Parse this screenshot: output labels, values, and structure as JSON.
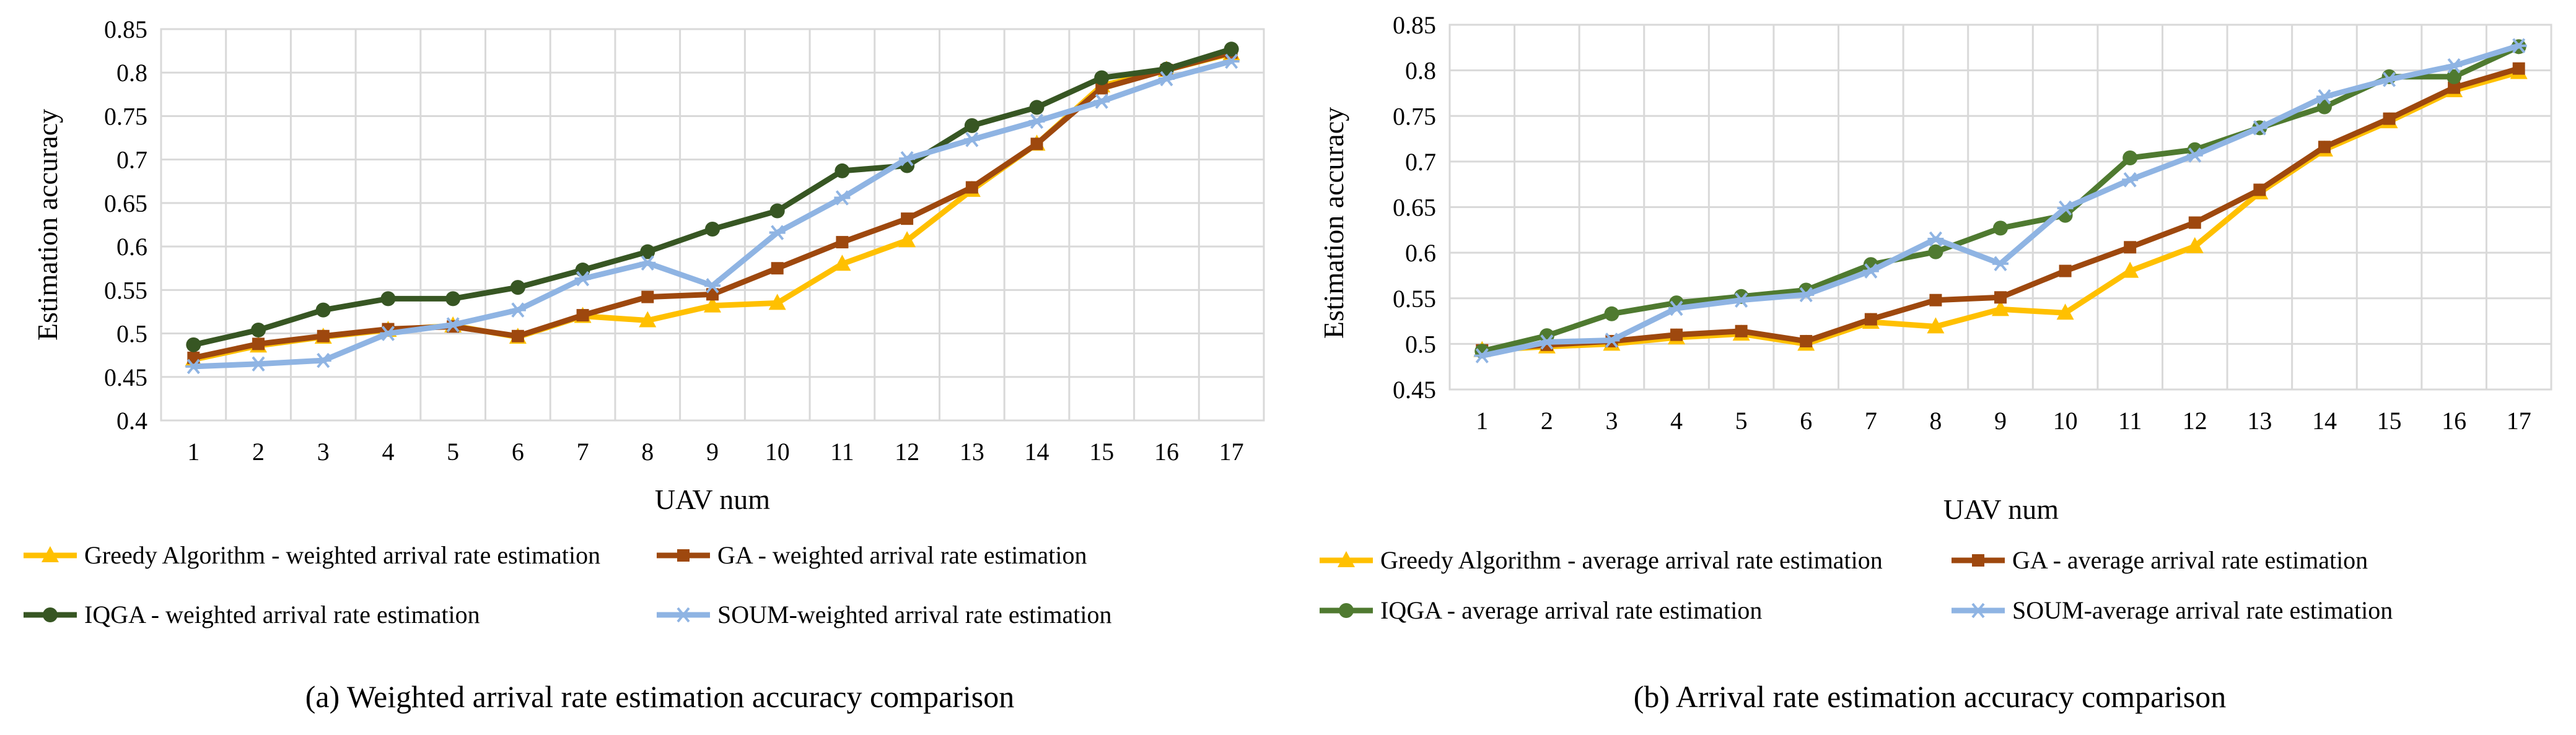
{
  "chart_data": [
    {
      "type": "line",
      "caption": "(a) Weighted arrival rate estimation accuracy comparison",
      "xlabel": "UAV num",
      "ylabel": "Estimation accuracy",
      "ylim": [
        0.4,
        0.85
      ],
      "y_ticks": [
        "0.4",
        "0.45",
        "0.5",
        "0.55",
        "0.6",
        "0.65",
        "0.7",
        "0.75",
        "0.8",
        "0.85"
      ],
      "categories": [
        "1",
        "2",
        "3",
        "4",
        "5",
        "6",
        "7",
        "8",
        "9",
        "10",
        "11",
        "12",
        "13",
        "14",
        "15",
        "16",
        "17"
      ],
      "grid": true,
      "legend_position": "bottom",
      "series": [
        {
          "name": "Greedy Algorithm -  weighted arrival rate estimation",
          "color": "#ffc000",
          "marker": "triangle",
          "values": [
            0.47,
            0.486,
            0.496,
            0.504,
            0.509,
            0.496,
            0.52,
            0.515,
            0.532,
            0.535,
            0.58,
            0.607,
            0.665,
            0.718,
            0.785,
            0.803,
            0.822
          ]
        },
        {
          "name": "GA -  weighted arrival rate estimation",
          "color": "#9e480e",
          "marker": "square",
          "values": [
            0.472,
            0.488,
            0.497,
            0.505,
            0.508,
            0.497,
            0.521,
            0.542,
            0.545,
            0.575,
            0.605,
            0.632,
            0.668,
            0.718,
            0.782,
            0.803,
            0.823
          ]
        },
        {
          "name": "IQGA -  weighted arrival rate estimation",
          "color": "#375623",
          "marker": "circle",
          "values": [
            0.487,
            0.504,
            0.527,
            0.54,
            0.54,
            0.553,
            0.573,
            0.594,
            0.62,
            0.641,
            0.687,
            0.693,
            0.739,
            0.76,
            0.794,
            0.804,
            0.827
          ]
        },
        {
          "name": "SOUM-weighted arrival rate estimation",
          "color": "#8fb4e3",
          "marker": "star",
          "values": [
            0.462,
            0.465,
            0.469,
            0.5,
            0.51,
            0.527,
            0.563,
            0.581,
            0.555,
            0.616,
            0.656,
            0.701,
            0.723,
            0.744,
            0.767,
            0.793,
            0.813
          ]
        }
      ]
    },
    {
      "type": "line",
      "caption": "(b) Arrival rate estimation accuracy comparison",
      "xlabel": "UAV num",
      "ylabel": "Estimation accuracy",
      "ylim": [
        0.45,
        0.85
      ],
      "y_ticks": [
        "0.45",
        "0.5",
        "0.55",
        "0.6",
        "0.65",
        "0.7",
        "0.75",
        "0.8",
        "0.85"
      ],
      "categories": [
        "1",
        "2",
        "3",
        "4",
        "5",
        "6",
        "7",
        "8",
        "9",
        "10",
        "11",
        "12",
        "13",
        "14",
        "15",
        "16",
        "17"
      ],
      "grid": true,
      "legend_position": "bottom",
      "series": [
        {
          "name": "Greedy Algorithm -  average arrival rate estimation",
          "color": "#ffc000",
          "marker": "triangle",
          "values": [
            0.493,
            0.497,
            0.5,
            0.507,
            0.511,
            0.5,
            0.524,
            0.519,
            0.538,
            0.534,
            0.58,
            0.607,
            0.666,
            0.713,
            0.744,
            0.778,
            0.798
          ]
        },
        {
          "name": "GA -  average arrival rate estimation",
          "color": "#9e480e",
          "marker": "square",
          "values": [
            0.493,
            0.499,
            0.503,
            0.51,
            0.514,
            0.503,
            0.527,
            0.548,
            0.551,
            0.58,
            0.606,
            0.633,
            0.669,
            0.716,
            0.747,
            0.781,
            0.802
          ]
        },
        {
          "name": "IQGA -  average arrival rate estimation",
          "color": "#4f7a30",
          "marker": "circle",
          "values": [
            0.492,
            0.509,
            0.533,
            0.545,
            0.552,
            0.559,
            0.587,
            0.601,
            0.627,
            0.641,
            0.704,
            0.713,
            0.737,
            0.76,
            0.793,
            0.793,
            0.826
          ]
        },
        {
          "name": "SOUM-average arrival rate estimation",
          "color": "#8fb4e3",
          "marker": "star",
          "values": [
            0.487,
            0.502,
            0.504,
            0.539,
            0.548,
            0.554,
            0.58,
            0.615,
            0.588,
            0.649,
            0.68,
            0.707,
            0.737,
            0.771,
            0.79,
            0.805,
            0.827
          ]
        }
      ]
    }
  ]
}
